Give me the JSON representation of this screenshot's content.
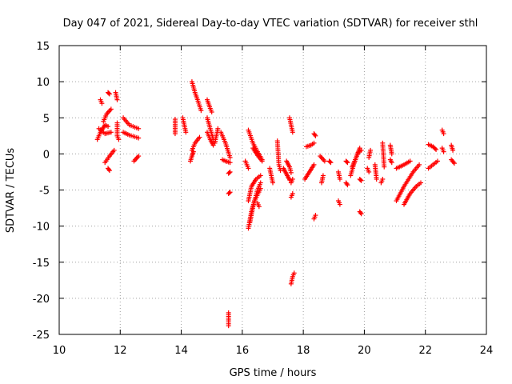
{
  "chart_data": {
    "type": "scatter",
    "title": "Day 047 of 2021, Sidereal Day-to-day VTEC variation (SDTVAR) for receiver sthl",
    "xlabel": "GPS time / hours",
    "ylabel": "SDTVAR / TECUs",
    "xlim": [
      10,
      24
    ],
    "ylim": [
      -25,
      15
    ],
    "xticks": [
      10,
      12,
      14,
      16,
      18,
      20,
      22,
      24
    ],
    "yticks": [
      -25,
      -20,
      -15,
      -10,
      -5,
      0,
      5,
      10,
      15
    ],
    "xtick_labels": [
      "10",
      "12",
      "14",
      "16",
      "18",
      "20",
      "22",
      "24"
    ],
    "ytick_labels": [
      "-25",
      "-20",
      "-15",
      "-10",
      "-5",
      "0",
      "5",
      "10",
      "15"
    ],
    "grid": true,
    "marker": "plus",
    "series": [
      {
        "name": "SDTVAR",
        "color": "#ff0000",
        "segments": [
          [
            [
              11.25,
              2.0
            ],
            [
              11.35,
              3.0
            ],
            [
              11.5,
              4.0
            ],
            [
              11.6,
              3.8
            ]
          ],
          [
            [
              11.3,
              3.5
            ],
            [
              11.5,
              2.8
            ],
            [
              11.7,
              3.0
            ]
          ],
          [
            [
              11.35,
              7.5
            ],
            [
              11.4,
              7.0
            ]
          ],
          [
            [
              11.45,
              4.5
            ],
            [
              11.55,
              5.5
            ],
            [
              11.7,
              6.2
            ]
          ],
          [
            [
              11.6,
              8.5
            ],
            [
              11.65,
              8.3
            ]
          ],
          [
            [
              11.5,
              -1.2
            ],
            [
              11.65,
              -0.3
            ],
            [
              11.8,
              0.5
            ]
          ],
          [
            [
              11.6,
              -2.0
            ],
            [
              11.65,
              -2.3
            ]
          ],
          [
            [
              11.85,
              8.5
            ],
            [
              11.9,
              7.5
            ]
          ],
          [
            [
              11.9,
              4.3
            ],
            [
              11.9,
              2.5
            ],
            [
              11.95,
              2.0
            ]
          ],
          [
            [
              12.1,
              5.0
            ],
            [
              12.3,
              4.0
            ],
            [
              12.6,
              3.5
            ]
          ],
          [
            [
              12.1,
              3.0
            ],
            [
              12.3,
              2.6
            ],
            [
              12.6,
              2.2
            ]
          ],
          [
            [
              12.45,
              -1.0
            ],
            [
              12.6,
              -0.3
            ]
          ],
          [
            [
              13.8,
              4.8
            ],
            [
              13.8,
              3.8
            ],
            [
              13.8,
              2.8
            ]
          ],
          [
            [
              14.05,
              5.0
            ],
            [
              14.1,
              4.0
            ],
            [
              14.15,
              3.0
            ]
          ],
          [
            [
              14.35,
              10.0
            ],
            [
              14.45,
              8.5
            ],
            [
              14.55,
              7.3
            ],
            [
              14.65,
              6.0
            ]
          ],
          [
            [
              14.35,
              0.5
            ],
            [
              14.45,
              1.5
            ],
            [
              14.6,
              2.3
            ]
          ],
          [
            [
              14.3,
              -1.0
            ],
            [
              14.35,
              -0.3
            ],
            [
              14.4,
              0.3
            ]
          ],
          [
            [
              14.85,
              7.5
            ],
            [
              14.95,
              6.3
            ],
            [
              15.0,
              5.8
            ]
          ],
          [
            [
              14.85,
              5.0
            ],
            [
              14.95,
              3.5
            ],
            [
              15.05,
              2.0
            ]
          ],
          [
            [
              14.85,
              3.0
            ],
            [
              14.95,
              2.0
            ],
            [
              15.05,
              1.2
            ]
          ],
          [
            [
              15.1,
              1.5
            ],
            [
              15.15,
              2.5
            ],
            [
              15.2,
              3.5
            ]
          ],
          [
            [
              15.3,
              3.0
            ],
            [
              15.45,
              1.5
            ],
            [
              15.6,
              -0.5
            ]
          ],
          [
            [
              15.35,
              -0.8
            ],
            [
              15.45,
              -1.0
            ],
            [
              15.6,
              -1.2
            ]
          ],
          [
            [
              15.55,
              -2.7
            ],
            [
              15.6,
              -2.5
            ]
          ],
          [
            [
              15.55,
              -5.5
            ],
            [
              15.6,
              -5.3
            ]
          ],
          [
            [
              15.55,
              -22.0
            ],
            [
              15.55,
              -23.0
            ],
            [
              15.55,
              -23.8
            ]
          ],
          [
            [
              16.1,
              -1.0
            ],
            [
              16.2,
              -2.0
            ]
          ],
          [
            [
              16.2,
              -10.3
            ],
            [
              16.3,
              -8.0
            ],
            [
              16.4,
              -6.5
            ],
            [
              16.6,
              -4.8
            ]
          ],
          [
            [
              16.25,
              -9.5
            ],
            [
              16.35,
              -7.3
            ],
            [
              16.5,
              -5.0
            ],
            [
              16.6,
              -4.0
            ]
          ],
          [
            [
              16.2,
              -6.5
            ],
            [
              16.3,
              -4.5
            ],
            [
              16.45,
              -3.5
            ],
            [
              16.6,
              -3.0
            ]
          ],
          [
            [
              16.2,
              3.3
            ],
            [
              16.35,
              1.5
            ],
            [
              16.5,
              0.3
            ],
            [
              16.65,
              -0.8
            ]
          ],
          [
            [
              16.35,
              0.8
            ],
            [
              16.5,
              -0.2
            ],
            [
              16.65,
              -1.0
            ]
          ],
          [
            [
              16.5,
              -6.8
            ],
            [
              16.55,
              -7.3
            ]
          ],
          [
            [
              16.9,
              -2.0
            ],
            [
              16.95,
              -3.0
            ],
            [
              17.0,
              -4.0
            ]
          ],
          [
            [
              17.15,
              1.8
            ],
            [
              17.2,
              -1.5
            ],
            [
              17.25,
              -2.3
            ]
          ],
          [
            [
              17.35,
              -2.0
            ],
            [
              17.45,
              -2.8
            ],
            [
              17.55,
              -3.6
            ]
          ],
          [
            [
              17.45,
              -1.0
            ],
            [
              17.55,
              -1.8
            ],
            [
              17.6,
              -2.6
            ]
          ],
          [
            [
              17.55,
              5.0
            ],
            [
              17.6,
              4.0
            ],
            [
              17.65,
              3.0
            ]
          ],
          [
            [
              17.6,
              -4.0
            ],
            [
              17.65,
              -3.5
            ]
          ],
          [
            [
              17.6,
              -6.0
            ],
            [
              17.65,
              -5.5
            ]
          ],
          [
            [
              17.6,
              -18.0
            ],
            [
              17.65,
              -17.0
            ],
            [
              17.7,
              -16.5
            ]
          ],
          [
            [
              18.05,
              -3.5
            ],
            [
              18.2,
              -2.5
            ],
            [
              18.35,
              -1.5
            ]
          ],
          [
            [
              18.1,
              1.0
            ],
            [
              18.25,
              1.2
            ],
            [
              18.35,
              1.5
            ]
          ],
          [
            [
              18.35,
              2.8
            ],
            [
              18.4,
              2.5
            ]
          ],
          [
            [
              18.35,
              -9.0
            ],
            [
              18.4,
              -8.5
            ]
          ],
          [
            [
              18.6,
              -4.0
            ],
            [
              18.65,
              -3.0
            ]
          ],
          [
            [
              18.55,
              -0.3
            ],
            [
              18.7,
              -1.0
            ]
          ],
          [
            [
              18.85,
              -1.0
            ],
            [
              18.9,
              -1.2
            ]
          ],
          [
            [
              19.15,
              -2.5
            ],
            [
              19.2,
              -3.5
            ]
          ],
          [
            [
              19.15,
              -6.5
            ],
            [
              19.2,
              -7.0
            ]
          ],
          [
            [
              19.4,
              -4.0
            ],
            [
              19.45,
              -4.3
            ]
          ],
          [
            [
              19.4,
              -1.0
            ],
            [
              19.45,
              -1.2
            ]
          ],
          [
            [
              19.55,
              -3.0
            ],
            [
              19.65,
              -1.5
            ],
            [
              19.75,
              -0.3
            ],
            [
              19.85,
              0.8
            ]
          ],
          [
            [
              19.6,
              -1.8
            ],
            [
              19.7,
              -0.8
            ],
            [
              19.8,
              0.2
            ],
            [
              19.9,
              0.5
            ]
          ],
          [
            [
              19.85,
              -3.5
            ],
            [
              19.9,
              -3.7
            ]
          ],
          [
            [
              19.85,
              -8.0
            ],
            [
              19.9,
              -8.3
            ]
          ],
          [
            [
              20.1,
              -2.0
            ],
            [
              20.15,
              -2.5
            ]
          ],
          [
            [
              20.15,
              -0.5
            ],
            [
              20.2,
              0.5
            ]
          ],
          [
            [
              20.35,
              -1.5
            ],
            [
              20.4,
              -3.5
            ]
          ],
          [
            [
              20.55,
              -4.0
            ],
            [
              20.6,
              -3.5
            ]
          ],
          [
            [
              20.6,
              1.5
            ],
            [
              20.65,
              -1.8
            ]
          ],
          [
            [
              20.85,
              1.2
            ],
            [
              20.9,
              0.0
            ]
          ],
          [
            [
              20.85,
              -0.8
            ],
            [
              20.9,
              -1.2
            ]
          ],
          [
            [
              21.05,
              -2.0
            ],
            [
              21.3,
              -1.5
            ],
            [
              21.5,
              -1.0
            ]
          ],
          [
            [
              21.05,
              -6.5
            ],
            [
              21.3,
              -4.5
            ],
            [
              21.6,
              -2.5
            ],
            [
              21.8,
              -1.5
            ]
          ],
          [
            [
              21.3,
              -7.0
            ],
            [
              21.5,
              -5.5
            ],
            [
              21.7,
              -4.5
            ],
            [
              21.85,
              -4.0
            ]
          ],
          [
            [
              22.1,
              -2.0
            ],
            [
              22.25,
              -1.5
            ],
            [
              22.4,
              -1.0
            ]
          ],
          [
            [
              22.1,
              1.3
            ],
            [
              22.25,
              1.0
            ],
            [
              22.35,
              0.6
            ]
          ],
          [
            [
              22.55,
              3.3
            ],
            [
              22.6,
              2.8
            ]
          ],
          [
            [
              22.55,
              0.8
            ],
            [
              22.6,
              0.3
            ]
          ],
          [
            [
              22.85,
              1.2
            ],
            [
              22.9,
              0.5
            ]
          ],
          [
            [
              22.85,
              -0.8
            ],
            [
              22.95,
              -1.3
            ]
          ]
        ]
      }
    ]
  }
}
